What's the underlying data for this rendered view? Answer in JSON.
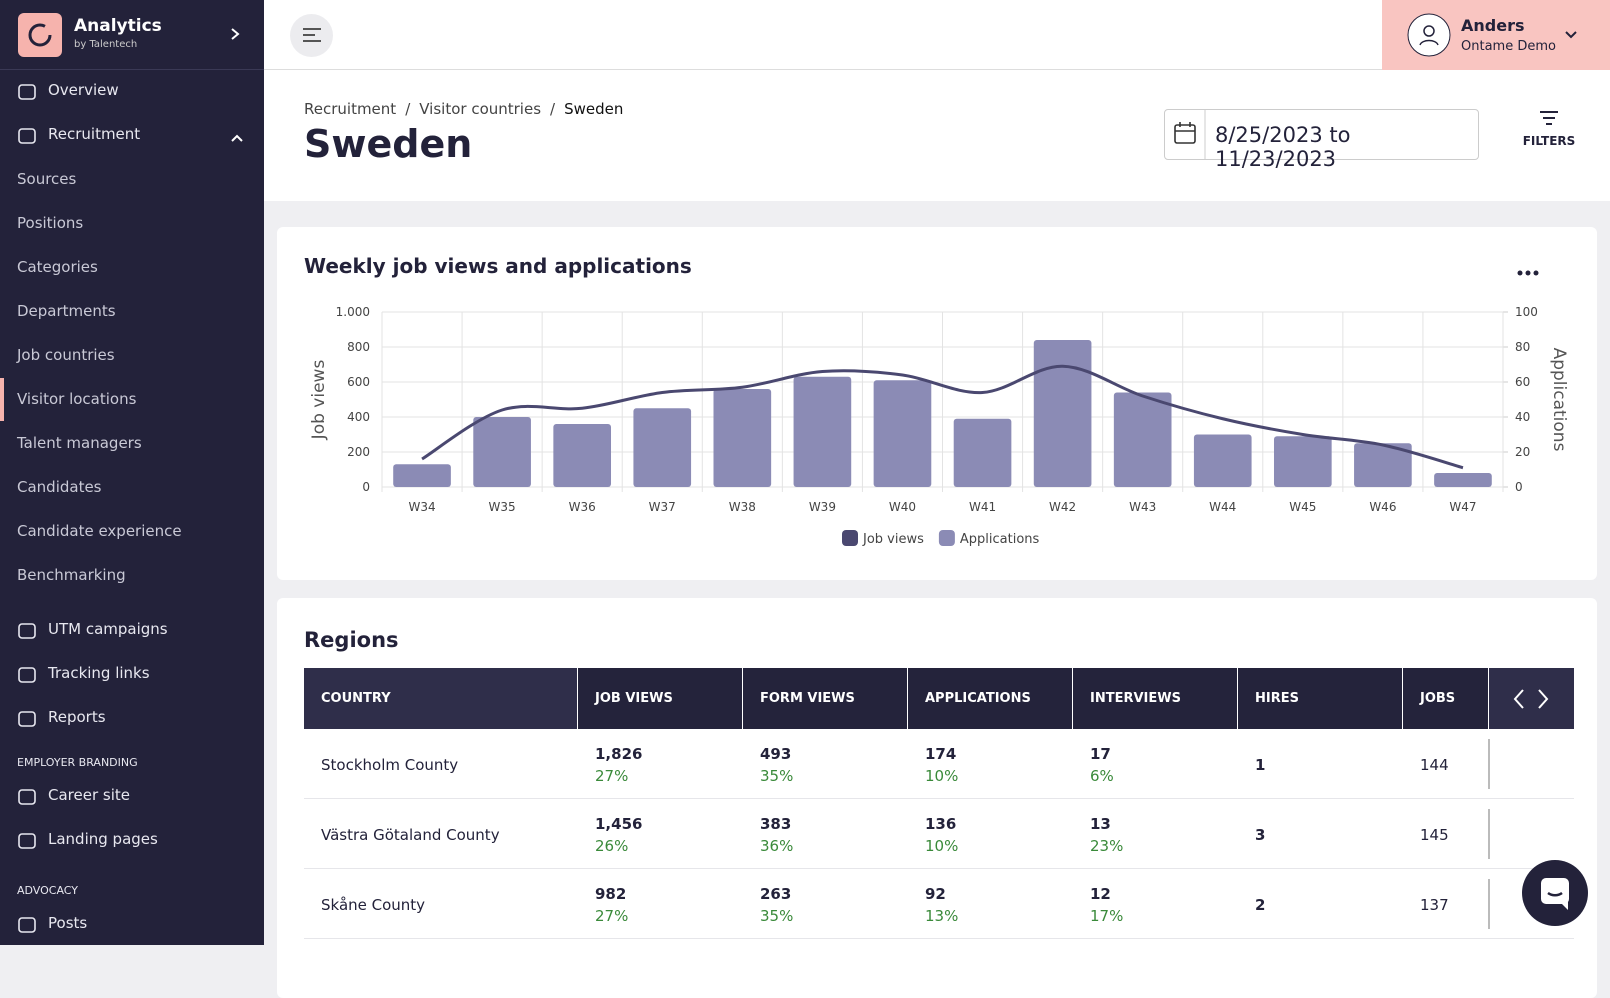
{
  "sidebar": {
    "brand": "Analytics",
    "brand_sub": "by Talentech",
    "main": [
      "Overview",
      "Recruitment"
    ],
    "recruitment_items": [
      "Sources",
      "Positions",
      "Categories",
      "Departments",
      "Job countries",
      "Visitor locations",
      "Talent managers",
      "Candidates",
      "Candidate experience",
      "Benchmarking"
    ],
    "tools": [
      "UTM campaigns",
      "Tracking links",
      "Reports"
    ],
    "sections": [
      {
        "heading": "EMPLOYER BRANDING",
        "items": [
          "Career site",
          "Landing pages"
        ]
      },
      {
        "heading": "ADVOCACY",
        "items": [
          "Posts"
        ]
      }
    ]
  },
  "user": {
    "name": "Anders",
    "org": "Ontame Demo"
  },
  "header": {
    "breadcrumbs": [
      "Recruitment",
      "Visitor countries",
      "Sweden"
    ],
    "title": "Sweden",
    "date_range": "8/25/2023 to 11/23/2023",
    "filters": "FILTERS"
  },
  "chart_data": {
    "type": "bar",
    "title": "Weekly job views and applications",
    "y_label": "Job views",
    "y2_label": "Applications",
    "categories": [
      "W34",
      "W35",
      "W36",
      "W37",
      "W38",
      "W39",
      "W40",
      "W41",
      "W42",
      "W43",
      "W44",
      "W45",
      "W46",
      "W47"
    ],
    "series": [
      {
        "name": "Job views",
        "type": "line",
        "color": "#4a4870",
        "values": [
          160,
          440,
          450,
          540,
          570,
          660,
          640,
          540,
          690,
          520,
          390,
          300,
          240,
          110
        ]
      },
      {
        "name": "Applications",
        "type": "bar",
        "axis": "y2",
        "color": "#8b8bb5",
        "values": [
          13,
          40,
          36,
          45,
          56,
          63,
          61,
          39,
          84,
          54,
          30,
          29,
          25,
          8
        ]
      }
    ],
    "ylim": [
      0,
      1000
    ],
    "yticks": [
      0,
      200,
      400,
      600,
      800,
      {
        "value": 1000,
        "label": "1.000"
      }
    ],
    "y2lim": [
      0,
      100
    ],
    "y2ticks": [
      0,
      20,
      40,
      60,
      80,
      100
    ],
    "grid": true,
    "legend": "bottom"
  },
  "table": {
    "title": "Regions",
    "columns": [
      "COUNTRY",
      "JOB VIEWS",
      "FORM VIEWS",
      "APPLICATIONS",
      "INTERVIEWS",
      "HIRES",
      "JOBS"
    ],
    "rows": [
      [
        "Stockholm County",
        [
          "1,826",
          "27%"
        ],
        [
          "493",
          "35%"
        ],
        [
          "174",
          "10%"
        ],
        [
          "17",
          "6%"
        ],
        "1",
        "144"
      ],
      [
        "Västra Götaland County",
        [
          "1,456",
          "26%"
        ],
        [
          "383",
          "36%"
        ],
        [
          "136",
          "10%"
        ],
        [
          "13",
          "23%"
        ],
        "3",
        "145"
      ],
      [
        "Skåne County",
        [
          "982",
          "27%"
        ],
        [
          "263",
          "35%"
        ],
        [
          "92",
          "13%"
        ],
        [
          "12",
          "17%"
        ],
        "2",
        "137"
      ]
    ]
  }
}
